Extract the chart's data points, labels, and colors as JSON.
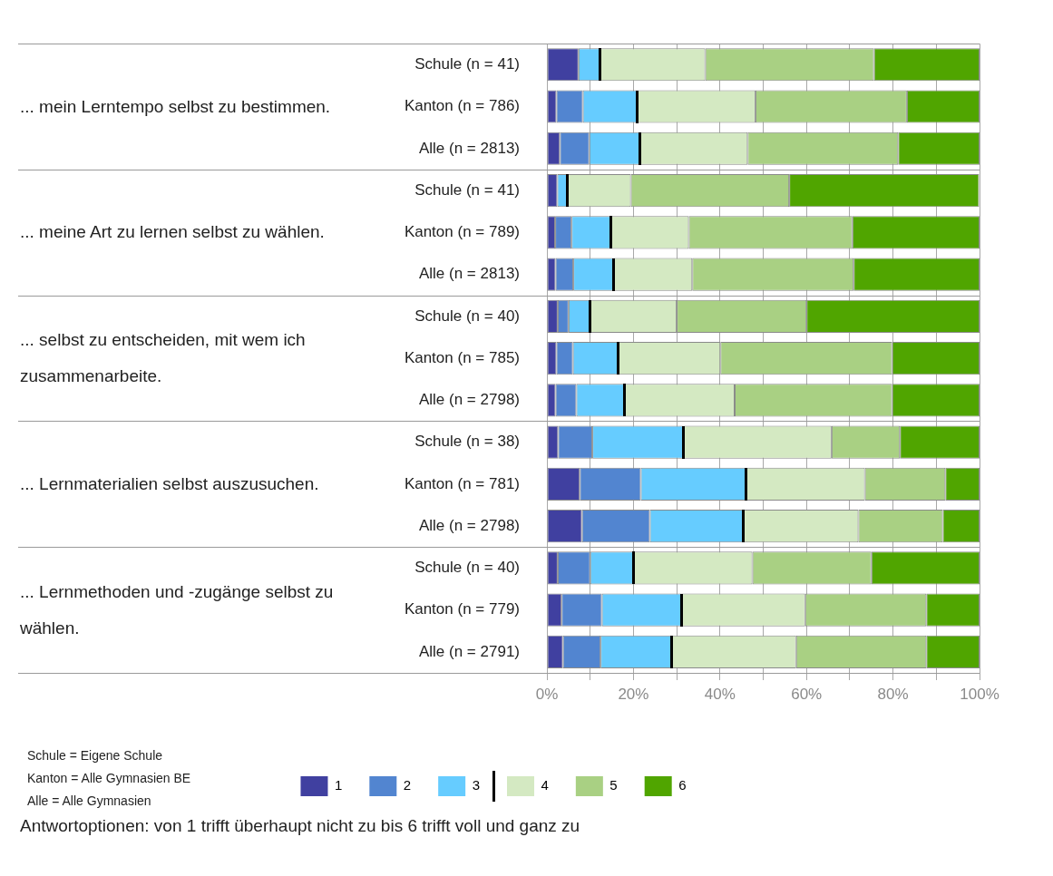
{
  "chart_data": {
    "type": "bar",
    "orientation": "horizontal",
    "stacked": true,
    "categories": [
      "Schule (n = 41)",
      "Kanton (n = 786)",
      "Alle (n = 2813)",
      "Schule (n = 41)",
      "Kanton (n = 789)",
      "Alle (n = 2813)",
      "Schule (n = 40)",
      "Kanton (n = 785)",
      "Alle (n = 2798)",
      "Schule (n = 38)",
      "Kanton (n = 781)",
      "Alle (n = 2798)",
      "Schule (n = 40)",
      "Kanton (n = 779)",
      "Alle (n = 2791)"
    ],
    "series": [
      {
        "name": "1",
        "color": "#4040a0",
        "values": [
          7.3,
          2.2,
          3.0,
          2.4,
          1.9,
          2.0,
          2.5,
          2.2,
          2.0,
          2.6,
          7.6,
          8.1,
          2.5,
          3.4,
          3.7
        ]
      },
      {
        "name": "2",
        "color": "#5285d0",
        "values": [
          0,
          6.1,
          6.8,
          0,
          3.8,
          4.1,
          2.5,
          3.8,
          4.8,
          7.9,
          14.1,
          15.7,
          7.5,
          9.3,
          8.7
        ]
      },
      {
        "name": "3",
        "color": "#66ccff",
        "values": [
          4.9,
          12.5,
          11.7,
          2.4,
          9.1,
          9.3,
          5.0,
          10.5,
          11.2,
          21.1,
          24.4,
          21.6,
          10.0,
          18.5,
          16.5
        ]
      },
      {
        "name": "4",
        "color": "#d4e9c2",
        "values": [
          24.4,
          27.4,
          24.9,
          14.6,
          18.0,
          18.2,
          20.0,
          23.6,
          25.4,
          34.2,
          27.4,
          26.6,
          27.5,
          28.5,
          28.7
        ]
      },
      {
        "name": "5",
        "color": "#a9d083",
        "values": [
          39.0,
          35.0,
          34.8,
          36.6,
          37.8,
          37.3,
          30.0,
          39.7,
          36.4,
          15.8,
          18.6,
          19.5,
          27.5,
          28.0,
          30.1
        ]
      },
      {
        "name": "6",
        "color": "#50a500",
        "values": [
          24.4,
          16.8,
          18.8,
          43.9,
          29.4,
          29.1,
          40.0,
          20.2,
          20.2,
          18.4,
          7.9,
          8.5,
          25.0,
          12.3,
          12.3
        ]
      }
    ],
    "xlim": [
      0,
      100
    ],
    "xticks": [
      {
        "value": 0,
        "label": "0%"
      },
      {
        "value": 10,
        "label": null
      },
      {
        "value": 20,
        "label": "20%"
      },
      {
        "value": 30,
        "label": null
      },
      {
        "value": 40,
        "label": "40%"
      },
      {
        "value": 50,
        "label": null
      },
      {
        "value": 60,
        "label": "60%"
      },
      {
        "value": 70,
        "label": null
      },
      {
        "value": 80,
        "label": "80%"
      },
      {
        "value": 90,
        "label": null
      },
      {
        "value": 100,
        "label": "100%"
      }
    ],
    "grid": "x",
    "legend": "bottom",
    "annotations": [
      "... mein Lerntempo selbst zu bestimmen.",
      "... meine Art zu lernen selbst zu wählen.",
      "... selbst zu entscheiden, mit wem ich zusammenarbeite.",
      "... Lernmaterialien selbst auszusuchen.",
      "... Lernmethoden und -zugänge selbst zu wählen.",
      "Schule = Eigene Schule",
      "Kanton = Alle Gymnasien BE",
      "Alle = Alle Gymnasien",
      "Antwortoptionen: von 1 trifft überhaupt nicht zu bis 6 trifft voll und ganz zu"
    ]
  }
}
